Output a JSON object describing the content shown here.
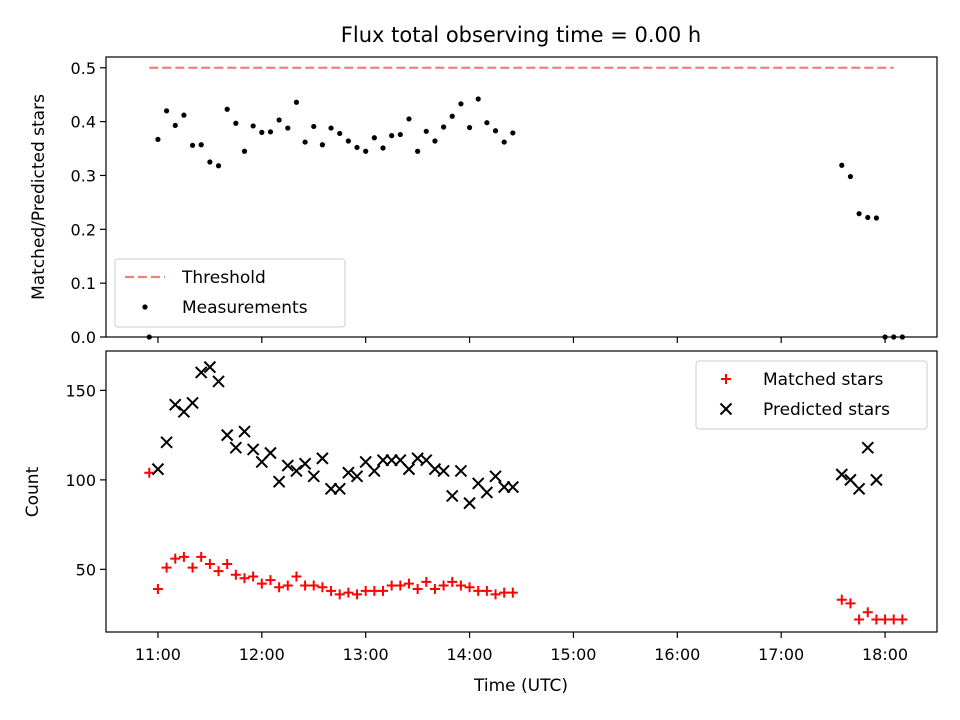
{
  "chart_data": [
    {
      "type": "scatter",
      "title": "Flux total observing time = 0.00 h",
      "xlabel": "",
      "ylabel": "Matched/Predicted stars",
      "xlim": [
        "10:30",
        "18:30"
      ],
      "ylim": [
        0,
        0.52
      ],
      "y_ticks": [
        "0.0",
        "0.1",
        "0.2",
        "0.3",
        "0.4",
        "0.5"
      ],
      "x_ticks": [
        "11:00",
        "12:00",
        "13:00",
        "14:00",
        "15:00",
        "16:00",
        "17:00",
        "18:00"
      ],
      "show_x_tick_labels": false,
      "grid": false,
      "legend": {
        "placement": "lower-left"
      },
      "series": [
        {
          "name": "Threshold",
          "kind": "dashed-line",
          "color": "#f08080",
          "x": [
            "10:55",
            "18:05"
          ],
          "y": [
            0.5,
            0.5
          ]
        },
        {
          "name": "Measurements",
          "kind": "dot",
          "color": "#000000",
          "x": [
            "10:55",
            "11:00",
            "11:05",
            "11:10",
            "11:15",
            "11:20",
            "11:25",
            "11:30",
            "11:35",
            "11:40",
            "11:45",
            "11:50",
            "11:55",
            "12:00",
            "12:05",
            "12:10",
            "12:15",
            "12:20",
            "12:25",
            "12:30",
            "12:35",
            "12:40",
            "12:45",
            "12:50",
            "12:55",
            "13:00",
            "13:05",
            "13:10",
            "13:15",
            "13:20",
            "13:25",
            "13:30",
            "13:35",
            "13:40",
            "13:45",
            "13:50",
            "13:55",
            "14:00",
            "14:05",
            "14:10",
            "14:15",
            "14:20",
            "14:25",
            "17:35",
            "17:40",
            "17:45",
            "17:50",
            "17:55",
            "18:00",
            "18:05",
            "18:10"
          ],
          "y": [
            0.0,
            0.367,
            0.42,
            0.393,
            0.412,
            0.356,
            0.357,
            0.325,
            0.318,
            0.423,
            0.397,
            0.345,
            0.392,
            0.38,
            0.381,
            0.403,
            0.388,
            0.436,
            0.362,
            0.391,
            0.357,
            0.388,
            0.378,
            0.364,
            0.352,
            0.345,
            0.37,
            0.351,
            0.374,
            0.376,
            0.405,
            0.345,
            0.382,
            0.364,
            0.39,
            0.41,
            0.433,
            0.389,
            0.442,
            0.398,
            0.383,
            0.362,
            0.379,
            0.319,
            0.298,
            0.229,
            0.222,
            0.221,
            0.0,
            0.0,
            0.0
          ]
        }
      ]
    },
    {
      "type": "scatter",
      "title": "",
      "xlabel": "Time (UTC)",
      "ylabel": "Count",
      "xlim": [
        "10:30",
        "18:30"
      ],
      "ylim": [
        15,
        172
      ],
      "y_ticks": [
        "50",
        "100",
        "150"
      ],
      "x_ticks": [
        "11:00",
        "12:00",
        "13:00",
        "14:00",
        "15:00",
        "16:00",
        "17:00",
        "18:00"
      ],
      "grid": false,
      "legend": {
        "placement": "top-right"
      },
      "series": [
        {
          "name": "Matched stars",
          "kind": "plus",
          "color": "#ff0000",
          "x": [
            "10:55",
            "11:00",
            "11:05",
            "11:10",
            "11:15",
            "11:20",
            "11:25",
            "11:30",
            "11:35",
            "11:40",
            "11:45",
            "11:50",
            "11:55",
            "12:00",
            "12:05",
            "12:10",
            "12:15",
            "12:20",
            "12:25",
            "12:30",
            "12:35",
            "12:40",
            "12:45",
            "12:50",
            "12:55",
            "13:00",
            "13:05",
            "13:10",
            "13:15",
            "13:20",
            "13:25",
            "13:30",
            "13:35",
            "13:40",
            "13:45",
            "13:50",
            "13:55",
            "14:00",
            "14:05",
            "14:10",
            "14:15",
            "14:20",
            "14:25",
            "17:35",
            "17:40",
            "17:45",
            "17:50",
            "17:55",
            "18:00",
            "18:05",
            "18:10"
          ],
          "y": [
            104,
            39,
            51,
            56,
            57,
            51,
            57,
            53,
            49,
            53,
            47,
            45,
            46,
            42,
            44,
            40,
            41,
            46,
            41,
            41,
            40,
            38,
            36,
            37,
            36,
            38,
            38,
            38,
            41,
            41,
            42,
            39,
            43,
            39,
            41,
            43,
            41,
            40,
            38,
            38,
            36,
            37,
            37,
            33,
            31,
            22,
            26,
            22,
            22,
            22,
            22
          ]
        },
        {
          "name": "Predicted stars",
          "kind": "x",
          "color": "#000000",
          "x": [
            "11:00",
            "11:05",
            "11:10",
            "11:15",
            "11:20",
            "11:25",
            "11:30",
            "11:35",
            "11:40",
            "11:45",
            "11:50",
            "11:55",
            "12:00",
            "12:05",
            "12:10",
            "12:15",
            "12:20",
            "12:25",
            "12:30",
            "12:35",
            "12:40",
            "12:45",
            "12:50",
            "12:55",
            "13:00",
            "13:05",
            "13:10",
            "13:15",
            "13:20",
            "13:25",
            "13:30",
            "13:35",
            "13:40",
            "13:45",
            "13:50",
            "13:55",
            "14:00",
            "14:05",
            "14:10",
            "14:15",
            "14:20",
            "14:25",
            "17:35",
            "17:40",
            "17:45",
            "17:50",
            "17:55"
          ],
          "y": [
            106,
            121,
            142,
            138,
            143,
            160,
            163,
            155,
            125,
            118,
            127,
            117,
            110,
            115,
            99,
            108,
            105,
            109,
            102,
            112,
            95,
            95,
            104,
            102,
            110,
            105,
            111,
            111,
            111,
            106,
            112,
            111,
            106,
            105,
            91,
            105,
            87,
            98,
            93,
            102,
            96,
            96,
            103,
            100,
            95,
            118,
            100
          ]
        }
      ]
    }
  ]
}
